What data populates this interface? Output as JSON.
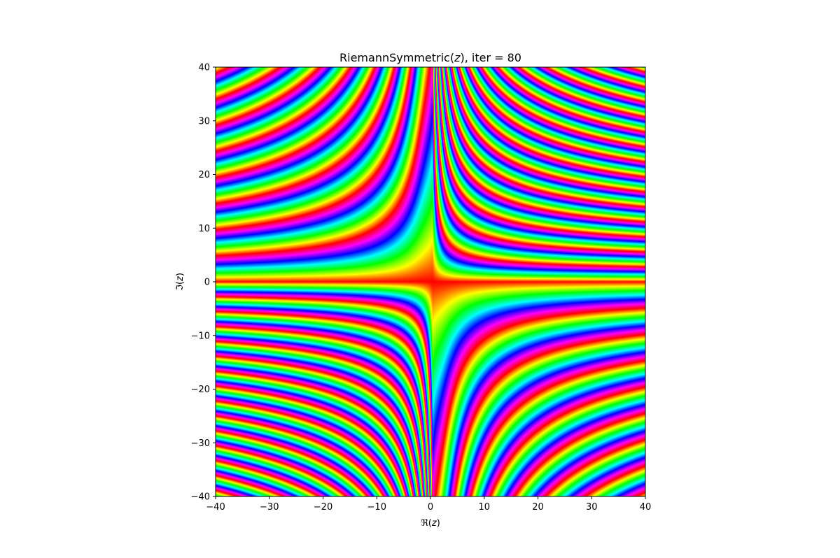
{
  "chart_data": {
    "type": "heatmap",
    "title": "RiemannSymmetric(z), iter = 80",
    "title_parts": {
      "prefix": "RiemannSymmetric(",
      "var": "z",
      "suffix": "), iter = 80"
    },
    "xlabel": "ℜ(z)",
    "xlabel_parts": {
      "prefix": "ℜ(",
      "var": "z",
      "suffix": ")"
    },
    "ylabel": "ℑ(z)",
    "ylabel_parts": {
      "prefix": "ℑ(",
      "var": "z",
      "suffix": ")"
    },
    "xlim": [
      -40,
      40
    ],
    "ylim": [
      -40,
      40
    ],
    "xticks": [
      -40,
      -30,
      -20,
      -10,
      0,
      10,
      20,
      30,
      40
    ],
    "yticks": [
      -40,
      -30,
      -20,
      -10,
      0,
      10,
      20,
      30,
      40
    ],
    "xtick_labels": [
      "−40",
      "−30",
      "−20",
      "−10",
      "0",
      "10",
      "20",
      "30",
      "40"
    ],
    "ytick_labels": [
      "−40",
      "−30",
      "−20",
      "−10",
      "0",
      "10",
      "20",
      "30",
      "40"
    ],
    "colormap": "hsv",
    "grid": false
  }
}
